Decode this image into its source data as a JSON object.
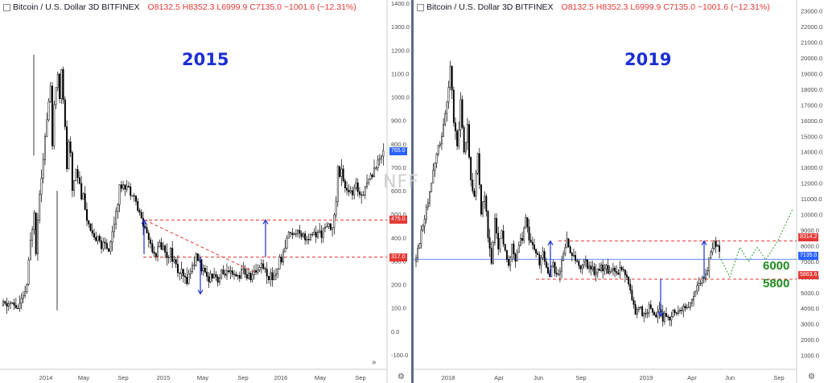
{
  "header": {
    "symbol": "Bitcoin / U.S. Dollar  3D  BITFINEX",
    "ohlc": "O8132.5  H8352.3  L6999.9  C7135.0  −1001.6 (−12.31%)"
  },
  "watermark": "NFF",
  "chart_data": [
    {
      "type": "candlestick",
      "title": "2015",
      "x_tick_labels": [
        "2014",
        "May",
        "Sep",
        "2015",
        "May",
        "Sep",
        "2016",
        "May",
        "Sep"
      ],
      "y_tick_labels": [
        "-100.0",
        "0.0",
        "100.0",
        "200.0",
        "300.0",
        "400.0",
        "500.0",
        "600.0",
        "700.0",
        "800.0",
        "900.0",
        "1000.0",
        "1100.0",
        "1200.0",
        "1300.0",
        "1400.0"
      ],
      "ylim": [
        -140,
        1400
      ],
      "price_path": [
        [
          0,
          110
        ],
        [
          4,
          120
        ],
        [
          8,
          100
        ],
        [
          11,
          140
        ],
        [
          13,
          200
        ],
        [
          15,
          380
        ],
        [
          17,
          520
        ],
        [
          18,
          350
        ],
        [
          20,
          600
        ],
        [
          22,
          750
        ],
        [
          24,
          900
        ],
        [
          26,
          1050
        ],
        [
          27,
          800
        ],
        [
          28,
          950
        ],
        [
          30,
          1100
        ],
        [
          31,
          1000
        ],
        [
          32,
          1130
        ],
        [
          33,
          1000
        ],
        [
          34,
          860
        ],
        [
          35,
          700
        ],
        [
          36,
          800
        ],
        [
          37,
          750
        ],
        [
          38,
          600
        ],
        [
          40,
          700
        ],
        [
          42,
          640
        ],
        [
          43,
          560
        ],
        [
          44,
          600
        ],
        [
          46,
          470
        ],
        [
          48,
          420
        ],
        [
          50,
          380
        ],
        [
          52,
          420
        ],
        [
          54,
          360
        ],
        [
          56,
          370
        ],
        [
          58,
          350
        ],
        [
          60,
          420
        ],
        [
          62,
          520
        ],
        [
          64,
          600
        ],
        [
          66,
          640
        ],
        [
          68,
          620
        ],
        [
          70,
          600
        ],
        [
          72,
          580
        ],
        [
          74,
          520
        ],
        [
          76,
          480
        ],
        [
          78,
          440
        ],
        [
          80,
          400
        ],
        [
          82,
          350
        ],
        [
          84,
          330
        ],
        [
          86,
          370
        ],
        [
          88,
          360
        ],
        [
          90,
          330
        ],
        [
          92,
          340
        ],
        [
          94,
          300
        ],
        [
          96,
          260
        ],
        [
          98,
          240
        ],
        [
          100,
          220
        ],
        [
          102,
          240
        ],
        [
          104,
          280
        ],
        [
          106,
          320
        ],
        [
          108,
          300
        ],
        [
          110,
          250
        ],
        [
          112,
          230
        ],
        [
          114,
          240
        ],
        [
          116,
          250
        ],
        [
          118,
          220
        ],
        [
          120,
          240
        ],
        [
          122,
          250
        ],
        [
          124,
          240
        ],
        [
          126,
          235
        ],
        [
          128,
          230
        ],
        [
          130,
          245
        ],
        [
          132,
          260
        ],
        [
          134,
          235
        ],
        [
          136,
          230
        ],
        [
          138,
          250
        ],
        [
          140,
          270
        ],
        [
          142,
          290
        ],
        [
          144,
          260
        ],
        [
          146,
          240
        ],
        [
          148,
          230
        ],
        [
          150,
          250
        ],
        [
          152,
          300
        ],
        [
          154,
          330
        ],
        [
          156,
          400
        ],
        [
          158,
          430
        ],
        [
          160,
          410
        ],
        [
          162,
          440
        ],
        [
          164,
          420
        ],
        [
          166,
          400
        ],
        [
          168,
          380
        ],
        [
          170,
          420
        ],
        [
          172,
          410
        ],
        [
          174,
          420
        ],
        [
          176,
          430
        ],
        [
          178,
          440
        ],
        [
          180,
          450
        ],
        [
          182,
          480
        ],
        [
          183,
          560
        ],
        [
          184,
          700
        ],
        [
          185,
          660
        ],
        [
          186,
          680
        ],
        [
          188,
          620
        ],
        [
          190,
          600
        ],
        [
          192,
          580
        ],
        [
          194,
          620
        ],
        [
          196,
          590
        ],
        [
          198,
          600
        ],
        [
          200,
          640
        ],
        [
          202,
          660
        ],
        [
          204,
          700
        ],
        [
          206,
          720
        ],
        [
          208,
          760
        ],
        [
          210,
          770
        ]
      ],
      "horizontal_levels": [
        {
          "value": 475.0,
          "label": "475.0",
          "style": "dashed",
          "color": "#e53935"
        },
        {
          "value": 317.0,
          "label": "317.0",
          "style": "dashed",
          "color": "#e53935"
        }
      ],
      "last_price": {
        "value": 765.0,
        "label": "765.0",
        "color": "#2962ff"
      }
    },
    {
      "type": "candlestick",
      "title": "2019",
      "x_tick_labels": [
        "2018",
        "Apr",
        "Jun",
        "Sep",
        "2019",
        "Apr",
        "Jun",
        "Sep"
      ],
      "y_tick_labels": [
        "1000.0",
        "2000.0",
        "3000.0",
        "4000.0",
        "5000.0",
        "6000.0",
        "7000.0",
        "8000.0",
        "9000.0",
        "10000.0",
        "11000.0",
        "12000.0",
        "13000.0",
        "14000.0",
        "15000.0",
        "16000.0",
        "17000.0",
        "18000.0",
        "19000.0",
        "20000.0",
        "21000.0",
        "22000.0",
        "23000.0"
      ],
      "ylim": [
        0,
        23500
      ],
      "price_path": [
        [
          0,
          7000
        ],
        [
          3,
          9000
        ],
        [
          6,
          10500
        ],
        [
          9,
          12000
        ],
        [
          12,
          14000
        ],
        [
          15,
          15000
        ],
        [
          18,
          17000
        ],
        [
          20,
          19500
        ],
        [
          22,
          16000
        ],
        [
          24,
          14500
        ],
        [
          26,
          17000
        ],
        [
          28,
          14000
        ],
        [
          30,
          15500
        ],
        [
          32,
          12000
        ],
        [
          34,
          11000
        ],
        [
          36,
          14000
        ],
        [
          38,
          10000
        ],
        [
          40,
          11500
        ],
        [
          42,
          8500
        ],
        [
          44,
          7000
        ],
        [
          46,
          9500
        ],
        [
          48,
          8000
        ],
        [
          50,
          9000
        ],
        [
          52,
          7500
        ],
        [
          54,
          6800
        ],
        [
          56,
          8200
        ],
        [
          58,
          7000
        ],
        [
          60,
          8000
        ],
        [
          62,
          8500
        ],
        [
          64,
          9500
        ],
        [
          66,
          8700
        ],
        [
          68,
          8000
        ],
        [
          70,
          7500
        ],
        [
          72,
          7000
        ],
        [
          74,
          7500
        ],
        [
          76,
          6500
        ],
        [
          78,
          6200
        ],
        [
          80,
          6700
        ],
        [
          82,
          6100
        ],
        [
          84,
          6300
        ],
        [
          86,
          7500
        ],
        [
          88,
          8200
        ],
        [
          90,
          7500
        ],
        [
          92,
          7200
        ],
        [
          94,
          7000
        ],
        [
          96,
          6500
        ],
        [
          98,
          7100
        ],
        [
          100,
          6700
        ],
        [
          102,
          6300
        ],
        [
          104,
          6500
        ],
        [
          106,
          6400
        ],
        [
          108,
          6600
        ],
        [
          110,
          6500
        ],
        [
          112,
          6500
        ],
        [
          114,
          6400
        ],
        [
          116,
          6500
        ],
        [
          118,
          6300
        ],
        [
          120,
          6400
        ],
        [
          122,
          6300
        ],
        [
          124,
          5600
        ],
        [
          126,
          4500
        ],
        [
          128,
          3900
        ],
        [
          130,
          4200
        ],
        [
          132,
          3600
        ],
        [
          134,
          3500
        ],
        [
          136,
          4000
        ],
        [
          138,
          3800
        ],
        [
          140,
          3600
        ],
        [
          142,
          3800
        ],
        [
          144,
          3500
        ],
        [
          146,
          3700
        ],
        [
          148,
          3600
        ],
        [
          150,
          3800
        ],
        [
          152,
          3900
        ],
        [
          154,
          4000
        ],
        [
          156,
          4100
        ],
        [
          158,
          4000
        ],
        [
          160,
          4300
        ],
        [
          162,
          5000
        ],
        [
          164,
          5300
        ],
        [
          166,
          5600
        ],
        [
          168,
          5800
        ],
        [
          170,
          6500
        ],
        [
          172,
          7700
        ],
        [
          174,
          8300
        ],
        [
          176,
          7900
        ],
        [
          178,
          7135
        ]
      ],
      "projection_path": [
        [
          178,
          7135
        ],
        [
          183,
          6000
        ],
        [
          189,
          7900
        ],
        [
          194,
          7000
        ],
        [
          199,
          7900
        ],
        [
          204,
          7100
        ],
        [
          211,
          8300
        ],
        [
          220,
          10400
        ]
      ],
      "horizontal_levels": [
        {
          "value": 8314.2,
          "label": "8314.2",
          "style": "dashed",
          "color": "#e53935"
        },
        {
          "value": 5863.6,
          "label": "5863.6",
          "style": "dashed",
          "color": "#e53935"
        },
        {
          "value": 7135.0,
          "label": "7135.0",
          "style": "solid",
          "color": "#2962ff"
        }
      ],
      "annotations": [
        "6000",
        "5800"
      ]
    }
  ]
}
